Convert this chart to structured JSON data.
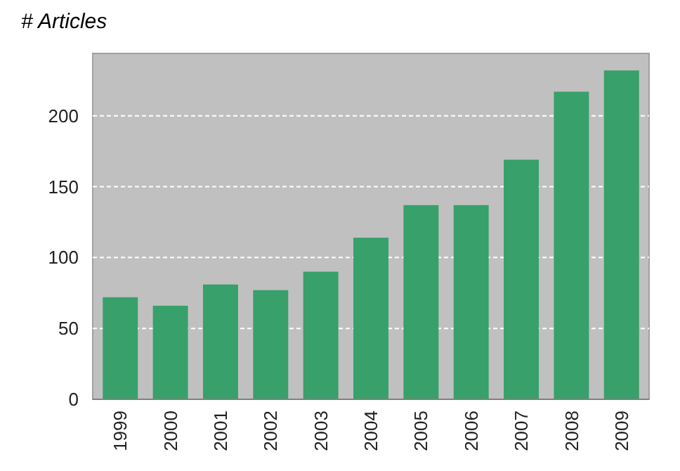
{
  "chart_data": {
    "type": "bar",
    "title": "# Articles",
    "categories": [
      "1999",
      "2000",
      "2001",
      "2002",
      "2003",
      "2004",
      "2005",
      "2006",
      "2007",
      "2008",
      "2009"
    ],
    "values": [
      72,
      66,
      81,
      77,
      90,
      114,
      137,
      137,
      169,
      217,
      232
    ],
    "color": "#38a06a",
    "ylim": [
      0,
      244
    ],
    "yticks": [
      0,
      50,
      100,
      150,
      200
    ],
    "grid": "y"
  }
}
